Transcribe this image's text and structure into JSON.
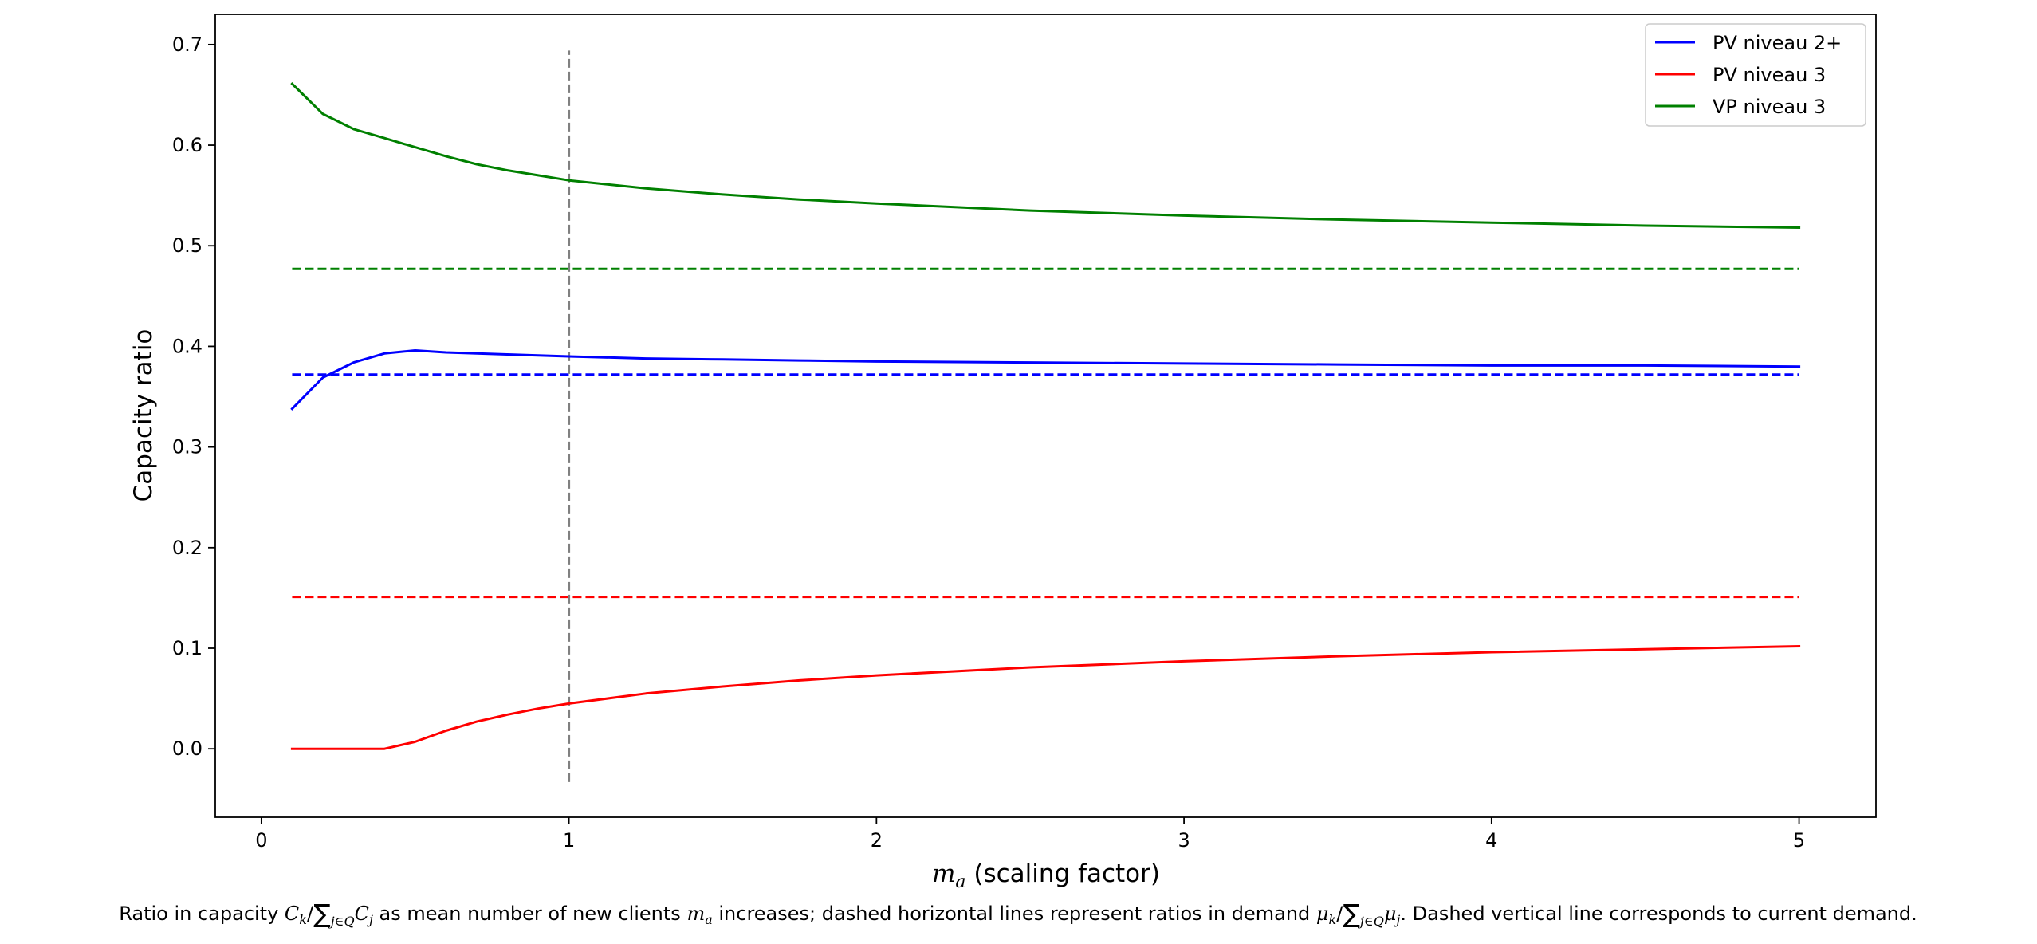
{
  "chart_data": {
    "type": "line",
    "xlabel_symbol": "m",
    "xlabel_symbol_sub": "a",
    "xlabel_text": " (scaling factor)",
    "ylabel": "Capacity ratio",
    "xlim": [
      -0.15,
      5.25
    ],
    "ylim": [
      -0.068,
      0.73
    ],
    "x_ticks": [
      0,
      1,
      2,
      3,
      4,
      5
    ],
    "x_tick_labels": [
      "0",
      "1",
      "2",
      "3",
      "4",
      "5"
    ],
    "y_ticks": [
      0.0,
      0.1,
      0.2,
      0.3,
      0.4,
      0.5,
      0.6,
      0.7
    ],
    "y_tick_labels": [
      "0.0",
      "0.1",
      "0.2",
      "0.3",
      "0.4",
      "0.5",
      "0.6",
      "0.7"
    ],
    "grid": false,
    "legend_position": "top-right",
    "series": [
      {
        "name": "PV niveau 2+",
        "color": "#0000ff",
        "style": "solid",
        "x": [
          0.1,
          0.2,
          0.3,
          0.4,
          0.5,
          0.6,
          0.7,
          0.8,
          0.9,
          1.0,
          1.25,
          1.5,
          1.75,
          2.0,
          2.5,
          3.0,
          3.5,
          4.0,
          4.5,
          5.0
        ],
        "values": [
          0.338,
          0.369,
          0.384,
          0.393,
          0.396,
          0.394,
          0.393,
          0.392,
          0.391,
          0.39,
          0.388,
          0.387,
          0.386,
          0.385,
          0.384,
          0.383,
          0.382,
          0.381,
          0.381,
          0.38
        ]
      },
      {
        "name": "PV niveau 3",
        "color": "#ff0000",
        "style": "solid",
        "x": [
          0.1,
          0.2,
          0.3,
          0.4,
          0.5,
          0.6,
          0.7,
          0.8,
          0.9,
          1.0,
          1.25,
          1.5,
          1.75,
          2.0,
          2.5,
          3.0,
          3.5,
          4.0,
          4.5,
          5.0
        ],
        "values": [
          0.0,
          0.0,
          0.0,
          0.0,
          0.007,
          0.018,
          0.027,
          0.034,
          0.04,
          0.045,
          0.055,
          0.062,
          0.068,
          0.073,
          0.081,
          0.087,
          0.092,
          0.096,
          0.099,
          0.102
        ]
      },
      {
        "name": "VP niveau 3",
        "color": "#008000",
        "style": "solid",
        "x": [
          0.1,
          0.2,
          0.3,
          0.4,
          0.5,
          0.6,
          0.7,
          0.8,
          0.9,
          1.0,
          1.25,
          1.5,
          1.75,
          2.0,
          2.5,
          3.0,
          3.5,
          4.0,
          4.5,
          5.0
        ],
        "values": [
          0.661,
          0.631,
          0.616,
          0.607,
          0.598,
          0.589,
          0.581,
          0.575,
          0.57,
          0.565,
          0.557,
          0.551,
          0.546,
          0.542,
          0.535,
          0.53,
          0.526,
          0.523,
          0.52,
          0.518
        ]
      }
    ],
    "reference_lines": [
      {
        "orientation": "horizontal",
        "value": 0.372,
        "x_range": [
          0.1,
          5.0
        ],
        "color": "#0000ff",
        "style": "dashed"
      },
      {
        "orientation": "horizontal",
        "value": 0.151,
        "x_range": [
          0.1,
          5.0
        ],
        "color": "#ff0000",
        "style": "dashed"
      },
      {
        "orientation": "horizontal",
        "value": 0.477,
        "x_range": [
          0.1,
          5.0
        ],
        "color": "#008000",
        "style": "dashed"
      },
      {
        "orientation": "vertical",
        "value": 1.0,
        "y_range": [
          -0.033,
          0.694
        ],
        "color": "#808080",
        "style": "dashed"
      }
    ]
  },
  "caption": {
    "t1": "Ratio in capacity ",
    "m1": "C",
    "s1": "k",
    "t2": "/",
    "sum1": "∑",
    "sub_sum1": "j∈Q",
    "m2": "C",
    "s2": "j",
    "t3": " as mean number of new clients ",
    "m3": "m",
    "s3": "a",
    "t4": " increases; dashed horizontal lines represent ratios in demand ",
    "m4": "μ",
    "s4": "k",
    "t5": "/",
    "sum2": "∑",
    "sub_sum2": "j∈Q",
    "m5": "μ",
    "s5": "j",
    "t6": ". Dashed vertical line corresponds to current demand."
  }
}
